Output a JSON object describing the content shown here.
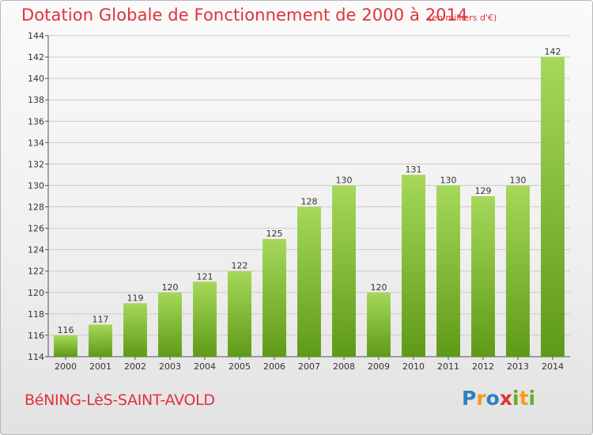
{
  "header": {
    "title": "Dotation Globale de Fonctionnement de 2000 à 2014",
    "subtitle": "(en milliers d'€)"
  },
  "footer": {
    "place": "BéNING-LèS-SAINT-AVOLD",
    "brand_letters": [
      "P",
      "r",
      "o",
      "x",
      "i",
      "t",
      "i"
    ]
  },
  "colors": {
    "accent": "#e0323a",
    "bar_light": "#a6d85a",
    "bar_dark": "#5e9a17",
    "grid": "#cccccc",
    "brand_blue": "#2f7fc3",
    "brand_orange": "#f59b1b",
    "brand_green": "#6aaa2a"
  },
  "chart_data": {
    "type": "bar",
    "categories": [
      "2000",
      "2001",
      "2002",
      "2003",
      "2004",
      "2005",
      "2006",
      "2007",
      "2008",
      "2009",
      "2010",
      "2011",
      "2012",
      "2013",
      "2014"
    ],
    "values": [
      116,
      117,
      119,
      120,
      121,
      122,
      125,
      128,
      130,
      120,
      131,
      130,
      129,
      130,
      142
    ],
    "title": "Dotation Globale de Fonctionnement de 2000 à 2014",
    "subtitle": "(en milliers d'€)",
    "xlabel": "",
    "ylabel": "",
    "ylim": [
      114,
      144
    ],
    "yticks": [
      114,
      116,
      118,
      120,
      122,
      124,
      126,
      128,
      130,
      132,
      134,
      136,
      138,
      140,
      142,
      144
    ],
    "grid": "horizontal",
    "data_labels": true
  }
}
